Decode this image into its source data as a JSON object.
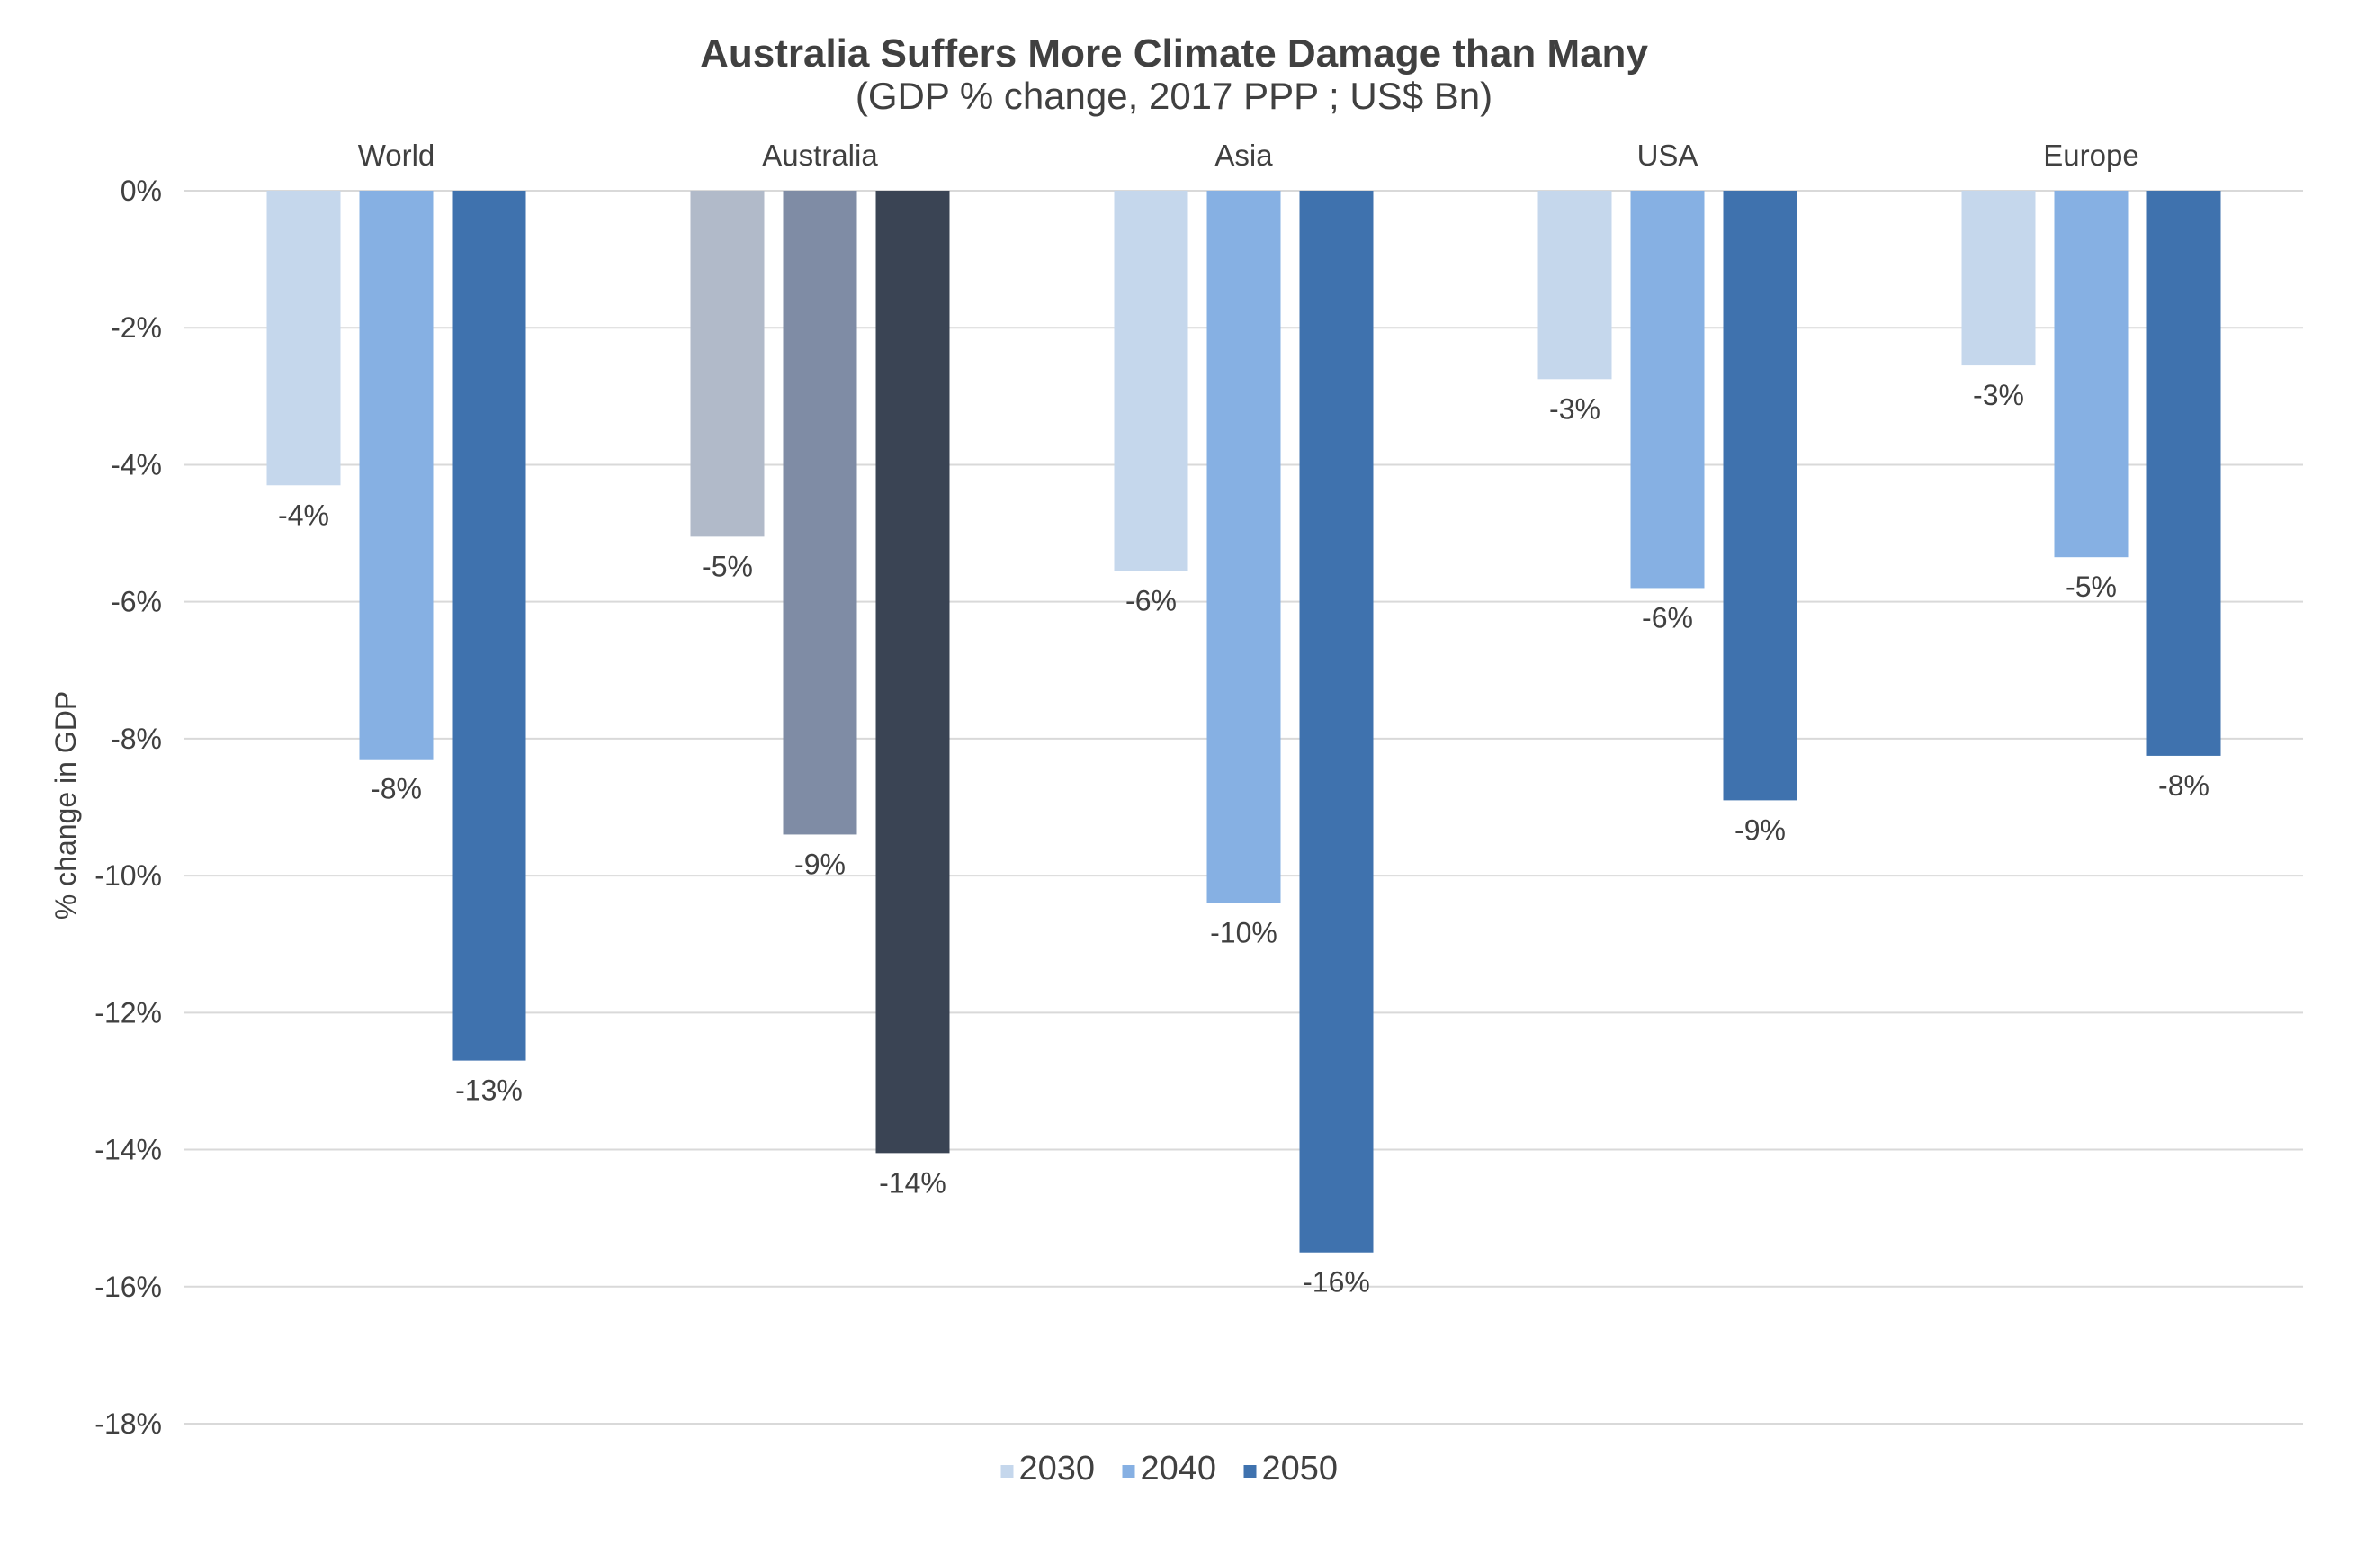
{
  "chart_data": {
    "type": "bar",
    "title": "Australia Suffers More Climate Damage than Many",
    "subtitle": "(GDP % change,  2017 PPP ; US$ Bn)",
    "ylabel": "% change in GDP",
    "xlabel": "",
    "ylim": [
      -18,
      0
    ],
    "ytick_values": [
      0,
      -2,
      -4,
      -6,
      -8,
      -10,
      -12,
      -14,
      -16,
      -18
    ],
    "ytick_labels": [
      "0%",
      "-2%",
      "-4%",
      "-6%",
      "-8%",
      "-10%",
      "-12%",
      "-14%",
      "-16%",
      "-18%"
    ],
    "grid": true,
    "category_labels_position": "top",
    "legend_position": "bottom",
    "categories": [
      "World",
      "Australia",
      "Asia",
      "USA",
      "Europe"
    ],
    "series": [
      {
        "name": "2030",
        "color": "#c5d7ec",
        "values": [
          -4.3,
          -5.05,
          -5.55,
          -2.75,
          -2.55
        ],
        "labels": [
          "-4%",
          "-5%",
          "-6%",
          "-3%",
          "-3%"
        ]
      },
      {
        "name": "2040",
        "color": "#86b0e3",
        "values": [
          -8.3,
          -9.4,
          -10.4,
          -5.8,
          -5.35
        ],
        "labels": [
          "-8%",
          "-9%",
          "-10%",
          "-6%",
          "-5%"
        ]
      },
      {
        "name": "2050",
        "color": "#3f72ae",
        "values": [
          -12.7,
          -14.05,
          -15.5,
          -8.9,
          -8.25
        ],
        "labels": [
          "-13%",
          "-14%",
          "-16%",
          "-9%",
          "-8%"
        ]
      }
    ],
    "highlight": {
      "category": "Australia",
      "colors": [
        "#b1bac9",
        "#7f8ca5",
        "#3a4454"
      ]
    }
  }
}
